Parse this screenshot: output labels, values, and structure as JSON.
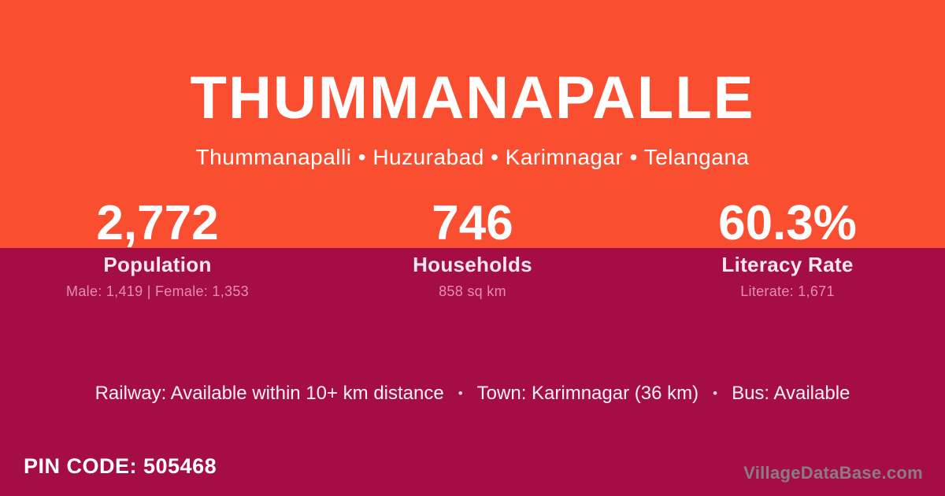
{
  "colors": {
    "orange_bg": "#FA4E31",
    "magenta_bg": "#A50D45",
    "title_text": "#FFFFFF",
    "label_text": "#F8E7EF",
    "detail_text": "#E78FAC",
    "info_text": "#FAF2F5",
    "pin_text": "#FFFFFF",
    "watermark_text": "#8D7B84"
  },
  "header": {
    "title": "THUMMANAPALLE",
    "subtitle": "Thummanapalli • Huzurabad • Karimnagar • Telangana"
  },
  "stats": [
    {
      "value": "2,772",
      "label": "Population",
      "detail": "Male: 1,419 | Female: 1,353"
    },
    {
      "value": "746",
      "label": "Households",
      "detail": "858 sq km"
    },
    {
      "value": "60.3%",
      "label": "Literacy Rate",
      "detail": "Literate: 1,671"
    }
  ],
  "info": {
    "railway": "Railway: Available within 10+ km distance",
    "separator": "•",
    "town": "Town: Karimnagar (36 km)",
    "bus": "Bus: Available"
  },
  "footer": {
    "pin_code": "PIN CODE: 505468",
    "watermark": "VillageDataBase.com"
  }
}
